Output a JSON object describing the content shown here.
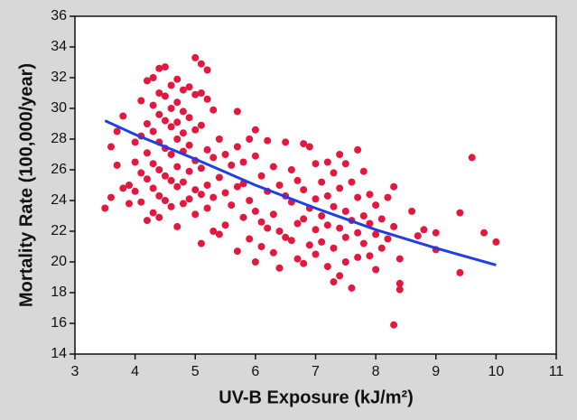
{
  "chart_data": {
    "type": "scatter",
    "xlabel": "UV-B Exposure (kJ/m²)",
    "ylabel": "Mortality Rate (100,000/year)",
    "xlim": [
      3,
      11
    ],
    "ylim": [
      14,
      36
    ],
    "xticks": [
      3,
      4,
      5,
      6,
      7,
      8,
      9,
      10,
      11
    ],
    "yticks": [
      14,
      16,
      18,
      20,
      22,
      24,
      26,
      28,
      30,
      32,
      34,
      36
    ],
    "color": "#e5173f",
    "x": [
      3.5,
      3.6,
      3.6,
      3.7,
      3.8,
      3.7,
      3.8,
      3.9,
      3.9,
      4.0,
      4.0,
      4.0,
      4.1,
      4.1,
      4.1,
      4.1,
      4.2,
      4.2,
      4.2,
      4.2,
      4.2,
      4.3,
      4.3,
      4.3,
      4.3,
      4.3,
      4.3,
      4.4,
      4.4,
      4.4,
      4.4,
      4.4,
      4.4,
      4.4,
      4.5,
      4.5,
      4.5,
      4.5,
      4.5,
      4.5,
      4.6,
      4.6,
      4.6,
      4.6,
      4.6,
      4.6,
      4.7,
      4.7,
      4.7,
      4.7,
      4.7,
      4.7,
      4.7,
      4.8,
      4.8,
      4.8,
      4.8,
      4.8,
      4.8,
      4.9,
      4.9,
      4.9,
      4.9,
      4.9,
      5.0,
      5.0,
      5.0,
      5.0,
      5.0,
      5.0,
      5.1,
      5.1,
      5.1,
      5.1,
      5.1,
      5.1,
      5.2,
      5.2,
      5.2,
      5.2,
      5.2,
      5.3,
      5.3,
      5.3,
      5.3,
      5.4,
      5.4,
      5.4,
      5.5,
      5.5,
      5.5,
      5.6,
      5.6,
      5.7,
      5.7,
      5.7,
      5.7,
      5.8,
      5.8,
      5.8,
      5.9,
      5.9,
      5.9,
      6.0,
      6.0,
      6.0,
      6.0,
      6.1,
      6.1,
      6.1,
      6.2,
      6.2,
      6.2,
      6.3,
      6.3,
      6.3,
      6.4,
      6.4,
      6.4,
      6.5,
      6.5,
      6.5,
      6.6,
      6.6,
      6.6,
      6.7,
      6.7,
      6.7,
      6.8,
      6.8,
      6.8,
      6.8,
      6.9,
      6.9,
      6.9,
      7.0,
      7.0,
      7.0,
      7.0,
      7.1,
      7.1,
      7.1,
      7.2,
      7.2,
      7.2,
      7.2,
      7.3,
      7.3,
      7.3,
      7.3,
      7.4,
      7.4,
      7.4,
      7.4,
      7.5,
      7.5,
      7.5,
      7.5,
      7.6,
      7.6,
      7.6,
      7.7,
      7.7,
      7.7,
      7.7,
      7.8,
      7.8,
      7.8,
      7.9,
      7.9,
      7.9,
      8.0,
      8.0,
      8.0,
      8.1,
      8.1,
      8.2,
      8.2,
      8.3,
      8.3,
      8.3,
      8.4,
      8.4,
      8.4,
      8.6,
      8.7,
      8.8,
      9.0,
      9.0,
      9.4,
      9.4,
      9.6,
      9.8,
      10.0
    ],
    "values": [
      23.5,
      24.2,
      27.5,
      28.5,
      29.5,
      26.3,
      24.8,
      25.0,
      23.8,
      27.8,
      26.5,
      24.6,
      30.5,
      28.2,
      25.8,
      23.9,
      31.8,
      29.0,
      27.1,
      25.4,
      22.7,
      32.0,
      30.2,
      28.5,
      26.4,
      24.8,
      23.2,
      32.6,
      31.0,
      29.6,
      27.8,
      26.0,
      24.3,
      22.9,
      32.7,
      30.8,
      29.2,
      27.4,
      25.6,
      24.0,
      31.5,
      30.0,
      28.8,
      27.0,
      25.3,
      23.6,
      31.9,
      30.4,
      29.1,
      28.0,
      26.2,
      24.9,
      22.3,
      31.2,
      29.8,
      28.4,
      27.2,
      25.2,
      23.8,
      31.4,
      29.4,
      27.6,
      25.9,
      24.1,
      33.3,
      30.9,
      28.6,
      26.6,
      24.7,
      23.1,
      32.9,
      31.0,
      28.9,
      26.1,
      24.4,
      21.2,
      32.5,
      30.6,
      27.3,
      25.0,
      23.5,
      29.9,
      26.8,
      24.2,
      22.0,
      28.0,
      25.5,
      21.8,
      27.0,
      24.5,
      22.4,
      26.3,
      23.7,
      29.8,
      27.5,
      24.9,
      20.7,
      26.5,
      25.1,
      22.9,
      28.0,
      24.0,
      21.5,
      28.6,
      26.9,
      23.3,
      20.0,
      25.6,
      22.6,
      21.0,
      27.9,
      24.6,
      22.2,
      26.2,
      23.1,
      20.6,
      25.0,
      22.0,
      19.6,
      27.8,
      24.3,
      21.6,
      26.0,
      23.9,
      21.4,
      25.3,
      22.5,
      20.2,
      27.7,
      24.7,
      22.8,
      19.9,
      27.5,
      23.5,
      21.1,
      26.4,
      24.1,
      22.1,
      20.5,
      25.2,
      23.0,
      21.3,
      26.5,
      24.3,
      22.4,
      19.7,
      25.8,
      23.6,
      20.9,
      18.7,
      27.0,
      24.8,
      22.2,
      19.1,
      26.4,
      23.3,
      21.6,
      20.0,
      25.2,
      22.7,
      18.3,
      27.3,
      24.2,
      21.9,
      20.3,
      25.9,
      23.0,
      21.2,
      24.4,
      22.5,
      20.4,
      23.7,
      21.8,
      19.5,
      22.8,
      20.9,
      24.2,
      21.5,
      24.9,
      22.3,
      15.9,
      18.6,
      18.2,
      20.2,
      23.3,
      21.7,
      22.1,
      20.8,
      21.9,
      23.2,
      19.3,
      26.8,
      21.9,
      21.3
    ],
    "line": {
      "color": "#1f3fe6",
      "x": [
        3.5,
        4,
        5,
        6,
        7,
        8,
        9,
        10
      ],
      "values": [
        29.2,
        28.3,
        26.7,
        25.0,
        23.5,
        22.1,
        20.9,
        19.8
      ]
    }
  }
}
